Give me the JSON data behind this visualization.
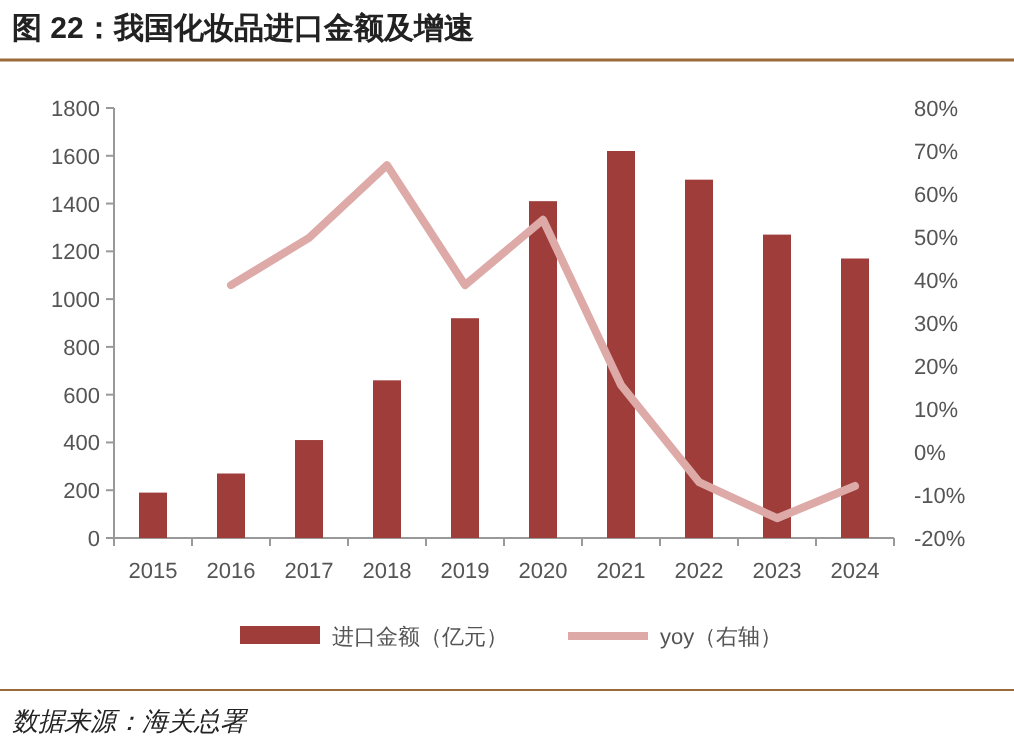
{
  "chart_data": {
    "type": "bar",
    "title": "图 22：我国化妆品进口金额及增速",
    "categories": [
      "2015",
      "2016",
      "2017",
      "2018",
      "2019",
      "2020",
      "2021",
      "2022",
      "2023",
      "2024"
    ],
    "series": [
      {
        "name": "进口金额（亿元）",
        "color": "#9e3d3a",
        "values": [
          190,
          270,
          410,
          660,
          920,
          1410,
          1620,
          1500,
          1270,
          1170
        ]
      },
      {
        "name": "yoy（右轴）",
        "type": "line",
        "axis": "y2",
        "color": "#ddaaa8",
        "values": [
          null,
          38.8,
          49.8,
          66.7,
          38.8,
          54,
          15.6,
          -7,
          -15.4,
          -7.9
        ]
      }
    ],
    "ylim": [
      0,
      1800
    ],
    "yticks": [
      0,
      200,
      400,
      600,
      800,
      1000,
      1200,
      1400,
      1600,
      1800
    ],
    "y2lim": [
      -20,
      80
    ],
    "y2ticks": [
      {
        "value": -20,
        "label": "-20%"
      },
      {
        "value": -10,
        "label": "-10%"
      },
      {
        "value": 0,
        "label": "0%"
      },
      {
        "value": 10,
        "label": "10%"
      },
      {
        "value": 20,
        "label": "20%"
      },
      {
        "value": 30,
        "label": "30%"
      },
      {
        "value": 40,
        "label": "40%"
      },
      {
        "value": 50,
        "label": "50%"
      },
      {
        "value": 60,
        "label": "60%"
      },
      {
        "value": 70,
        "label": "70%"
      },
      {
        "value": 80,
        "label": "80%"
      }
    ],
    "grid": false,
    "legend": "bottom",
    "line_style": "solid",
    "marker": "none",
    "annotations": [
      "数据来源：海关总署"
    ]
  }
}
